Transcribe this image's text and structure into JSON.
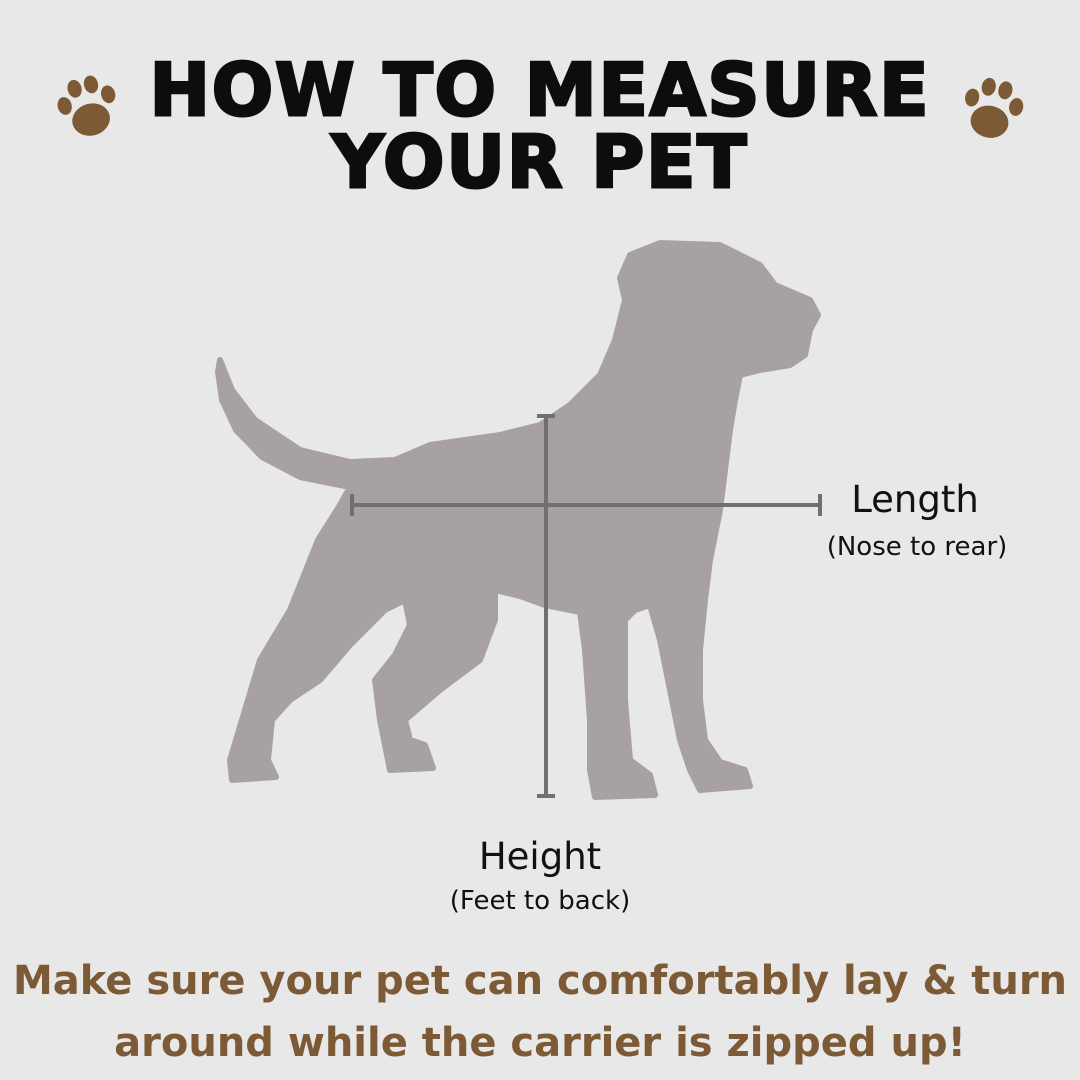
{
  "title": {
    "line1": "HOW TO MEASURE",
    "line2": "YOUR PET"
  },
  "icons": {
    "left": "paw-print-icon",
    "right": "paw-print-icon",
    "figure": "dog-silhouette"
  },
  "length": {
    "label": "Length",
    "sub": "(Nose to rear)"
  },
  "height": {
    "label": "Height",
    "sub": "(Feet to back)"
  },
  "note": {
    "line1": "Make sure your pet can comfortably lay & turn",
    "line2": "around while the carrier is zipped up!"
  },
  "colors": {
    "background": "#e9e8e8",
    "dog": "#a7a2a1",
    "measure_line": "#707070",
    "accent_brown": "#7d5a36",
    "title": "#0d0d0d"
  }
}
